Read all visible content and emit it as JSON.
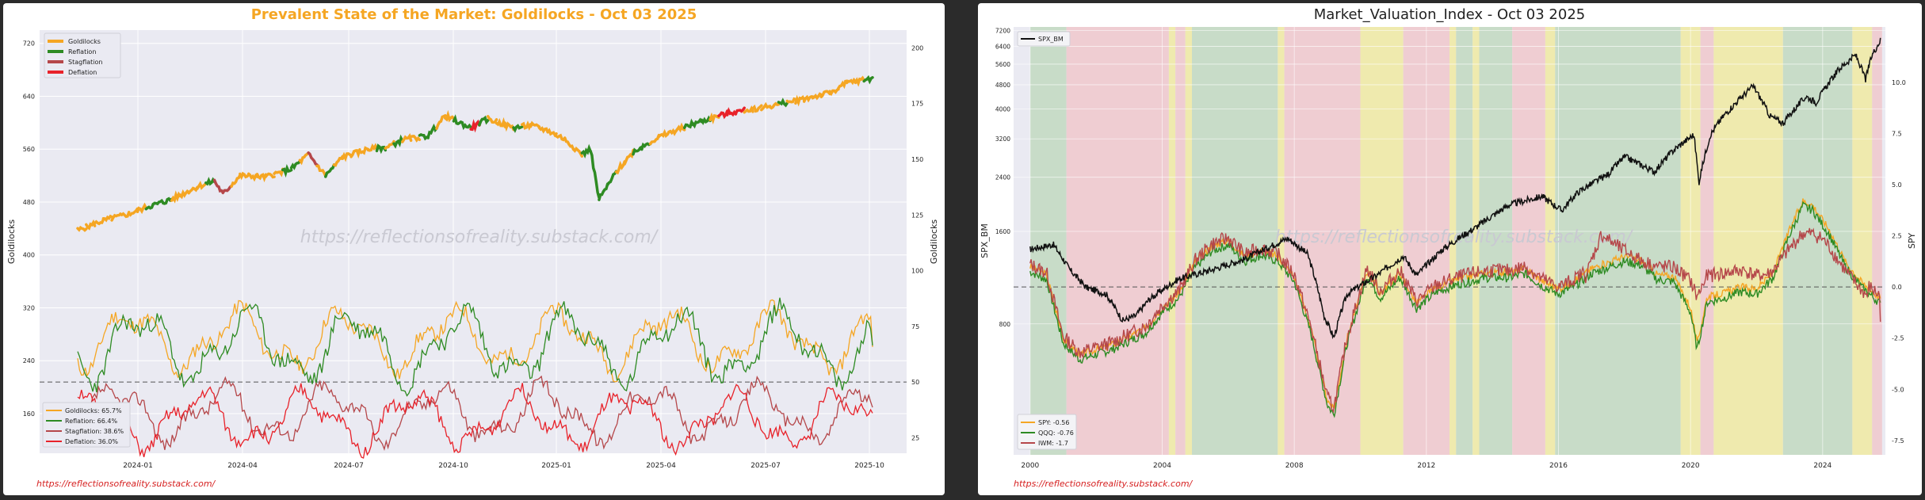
{
  "colors": {
    "goldilocks": "#f5a623",
    "reflation": "#2e8b23",
    "stagflation": "#b5474a",
    "deflation": "#e8222a",
    "spx": "#111111",
    "spy": "#f5a623",
    "qqq": "#2e8b23",
    "iwm": "#b5474a",
    "title_left": "#f5a623",
    "watermark": "#c9c9d2",
    "link": "#d62020",
    "band_green": "#c8dcc8",
    "band_red": "#efcdd2",
    "band_yellow": "#efeaae"
  },
  "source_link": "https://reflectionsofreality.substack.com/",
  "watermark": "https://reflectionsofreality.substack.com/",
  "left": {
    "chart_data": {
      "type": "line",
      "title": "Prevalent State of the Market: Goldilocks - Oct 03 2025",
      "ylabel_left": "Goldilocks",
      "ylabel_right": "Goldilocks",
      "ylim_left": [
        100,
        740
      ],
      "ylim_right": [
        18,
        208
      ],
      "yticks_left": [
        160,
        240,
        320,
        400,
        480,
        560,
        640,
        720
      ],
      "yticks_right": [
        25,
        50,
        75,
        100,
        125,
        150,
        175,
        200
      ],
      "xticks": [
        "2024-01",
        "2024-04",
        "2024-07",
        "2024-10",
        "2025-01",
        "2025-04",
        "2025-07",
        "2025-10"
      ],
      "grid": true,
      "price_legend": [
        "Goldilocks",
        "Reflation",
        "Stagflation",
        "Deflation"
      ],
      "price_legend_position": "top-left",
      "price_states": [
        "G",
        "G",
        "G",
        "G",
        "G",
        "G",
        "G",
        "G",
        "R",
        "R",
        "R",
        "G",
        "G",
        "G",
        "G",
        "R",
        "S",
        "S",
        "G",
        "G",
        "G",
        "G",
        "G",
        "G",
        "R",
        "R",
        "G",
        "S",
        "G",
        "R",
        "G",
        "G",
        "G",
        "G",
        "G",
        "R",
        "G",
        "R",
        "G",
        "G",
        "R",
        "R",
        "G",
        "G",
        "R",
        "R",
        "D",
        "R",
        "G",
        "G",
        "G",
        "R",
        "G",
        "G",
        "G",
        "G",
        "G",
        "G",
        "G",
        "R",
        "R",
        "R",
        "R",
        "G",
        "G",
        "R",
        "R",
        "G",
        "G",
        "G",
        "G",
        "R",
        "R",
        "R",
        "G",
        "D",
        "D",
        "D",
        "G",
        "G",
        "G",
        "G",
        "R",
        "G",
        "G",
        "G",
        "G",
        "G",
        "G",
        "G",
        "G",
        "G",
        "R",
        "R",
        "R"
      ],
      "price_knots": [
        [
          0,
          437
        ],
        [
          3,
          452
        ],
        [
          6,
          462
        ],
        [
          8,
          472
        ],
        [
          11,
          484
        ],
        [
          14,
          503
        ],
        [
          16,
          512
        ],
        [
          17,
          492
        ],
        [
          19,
          520
        ],
        [
          22,
          518
        ],
        [
          25,
          530
        ],
        [
          27,
          552
        ],
        [
          29,
          520
        ],
        [
          31,
          548
        ],
        [
          34,
          560
        ],
        [
          36,
          562
        ],
        [
          38,
          574
        ],
        [
          41,
          580
        ],
        [
          43,
          610
        ],
        [
          46,
          592
        ],
        [
          48,
          606
        ],
        [
          51,
          592
        ],
        [
          53,
          596
        ],
        [
          55,
          588
        ],
        [
          57,
          575
        ],
        [
          59,
          552
        ],
        [
          60,
          560
        ],
        [
          61,
          484
        ],
        [
          63,
          525
        ],
        [
          65,
          556
        ],
        [
          68,
          578
        ],
        [
          72,
          598
        ],
        [
          76,
          614
        ],
        [
          81,
          625
        ],
        [
          85,
          636
        ],
        [
          88,
          645
        ],
        [
          90,
          660
        ],
        [
          93,
          667
        ]
      ],
      "indicator_legend": [
        "Goldilocks: 65.7%",
        "Reflation: 66.4%",
        "Stagflation: 38.6%",
        "Deflation: 36.0%"
      ],
      "indicator_legend_position": "bottom-left",
      "indicator_reference": 50,
      "indicator_series": [
        {
          "name": "Goldilocks",
          "color_key": "goldilocks",
          "last": 65.7,
          "base": 69,
          "amp": 11,
          "seed": 11
        },
        {
          "name": "Reflation",
          "color_key": "reflation",
          "last": 66.4,
          "base": 66,
          "amp": 13,
          "seed": 23
        },
        {
          "name": "Stagflation",
          "color_key": "stagflation",
          "last": 38.6,
          "base": 36,
          "amp": 10,
          "seed": 37
        },
        {
          "name": "Deflation",
          "color_key": "deflation",
          "last": 36.0,
          "base": 33,
          "amp": 10,
          "seed": 51
        }
      ]
    }
  },
  "right": {
    "chart_data": {
      "type": "line",
      "title": "Market_Valuation_Index  - Oct 03 2025",
      "ylabel_left": "SPX_BM",
      "ylabel_right": "SPY",
      "log_scale_left": true,
      "yticks_left": [
        800,
        1600,
        2400,
        3200,
        4000,
        4800,
        5600,
        6400,
        7200
      ],
      "yticks_right": [
        -7.5,
        -5.0,
        -2.5,
        0.0,
        2.5,
        5.0,
        7.5,
        10.0
      ],
      "ylim_right": [
        -8.2,
        12.7
      ],
      "xlim": [
        1999.5,
        2025.9
      ],
      "xticks": [
        2000,
        2004,
        2008,
        2012,
        2016,
        2020,
        2024
      ],
      "grid": true,
      "spx_legend": "SPX_BM",
      "spx_legend_position": "top-left",
      "spx_knots": [
        [
          2000.0,
          1400
        ],
        [
          2000.7,
          1450
        ],
        [
          2001.2,
          1200
        ],
        [
          2001.7,
          1050
        ],
        [
          2002.3,
          1000
        ],
        [
          2002.8,
          820
        ],
        [
          2003.2,
          850
        ],
        [
          2003.6,
          960
        ],
        [
          2004.5,
          1120
        ],
        [
          2005.5,
          1200
        ],
        [
          2006.5,
          1300
        ],
        [
          2007.8,
          1520
        ],
        [
          2008.4,
          1350
        ],
        [
          2008.9,
          850
        ],
        [
          2009.2,
          720
        ],
        [
          2009.6,
          1000
        ],
        [
          2010.5,
          1150
        ],
        [
          2011.3,
          1330
        ],
        [
          2011.7,
          1150
        ],
        [
          2012.5,
          1400
        ],
        [
          2013.5,
          1650
        ],
        [
          2014.5,
          1950
        ],
        [
          2015.5,
          2080
        ],
        [
          2016.1,
          1870
        ],
        [
          2016.6,
          2150
        ],
        [
          2017.5,
          2450
        ],
        [
          2018.0,
          2800
        ],
        [
          2018.9,
          2500
        ],
        [
          2019.5,
          2950
        ],
        [
          2020.1,
          3300
        ],
        [
          2020.25,
          2300
        ],
        [
          2020.6,
          3300
        ],
        [
          2021.0,
          3800
        ],
        [
          2021.9,
          4750
        ],
        [
          2022.4,
          3800
        ],
        [
          2022.8,
          3600
        ],
        [
          2023.5,
          4400
        ],
        [
          2023.8,
          4200
        ],
        [
          2024.5,
          5400
        ],
        [
          2025.0,
          6000
        ],
        [
          2025.3,
          5000
        ],
        [
          2025.5,
          6000
        ],
        [
          2025.75,
          6700
        ]
      ],
      "valuation_legend": [
        "SPY: -0.56",
        "QQQ: -0.76",
        "IWM: -1.7"
      ],
      "valuation_legend_position": "bottom-left",
      "valuation_reference": 0.0,
      "valuation_knots": [
        [
          2000.0,
          1.0
        ],
        [
          2000.5,
          0.6
        ],
        [
          2001.0,
          -2.5
        ],
        [
          2001.5,
          -3.3
        ],
        [
          2002.5,
          -2.8
        ],
        [
          2003.0,
          -2.4
        ],
        [
          2003.5,
          -2.0
        ],
        [
          2004.0,
          -1.0
        ],
        [
          2004.5,
          -0.3
        ],
        [
          2005.0,
          1.2
        ],
        [
          2005.5,
          2.0
        ],
        [
          2006.0,
          2.3
        ],
        [
          2006.5,
          1.5
        ],
        [
          2007.0,
          1.8
        ],
        [
          2007.5,
          1.5
        ],
        [
          2008.0,
          0.5
        ],
        [
          2008.5,
          -2.0
        ],
        [
          2009.0,
          -5.5
        ],
        [
          2009.2,
          -6.0
        ],
        [
          2009.6,
          -2.5
        ],
        [
          2010.2,
          0.8
        ],
        [
          2010.6,
          -0.3
        ],
        [
          2011.2,
          0.7
        ],
        [
          2011.7,
          -0.8
        ],
        [
          2012.3,
          0.0
        ],
        [
          2013.0,
          0.4
        ],
        [
          2013.8,
          0.7
        ],
        [
          2014.5,
          0.7
        ],
        [
          2015.0,
          0.9
        ],
        [
          2015.5,
          0.3
        ],
        [
          2016.0,
          -0.1
        ],
        [
          2016.5,
          0.3
        ],
        [
          2017.0,
          0.9
        ],
        [
          2017.5,
          1.2
        ],
        [
          2018.0,
          1.5
        ],
        [
          2018.5,
          1.3
        ],
        [
          2019.0,
          0.6
        ],
        [
          2019.5,
          0.5
        ],
        [
          2020.0,
          -1.0
        ],
        [
          2020.2,
          -2.8
        ],
        [
          2020.5,
          -0.5
        ],
        [
          2021.0,
          -0.3
        ],
        [
          2021.5,
          0.0
        ],
        [
          2022.0,
          -0.1
        ],
        [
          2022.5,
          0.7
        ],
        [
          2023.0,
          2.8
        ],
        [
          2023.4,
          4.2
        ],
        [
          2023.7,
          4.0
        ],
        [
          2024.2,
          2.8
        ],
        [
          2024.7,
          1.2
        ],
        [
          2025.2,
          0.2
        ],
        [
          2025.75,
          -0.56
        ]
      ],
      "valuation_series": [
        {
          "name": "SPY",
          "color_key": "spy",
          "last": -0.56,
          "offset": 0.0,
          "noise": 0.18,
          "seed": 3
        },
        {
          "name": "QQQ",
          "color_key": "qqq",
          "last": -0.76,
          "offset": -0.25,
          "noise": 0.22,
          "seed": 7
        },
        {
          "name": "IWM",
          "color_key": "iwm",
          "last": -1.7,
          "offset": 0.1,
          "noise": 0.35,
          "seed": 13
        }
      ],
      "iwm_extra": [
        [
          2016.8,
          0.0
        ],
        [
          2017.3,
          3.6
        ],
        [
          2017.9,
          2.0
        ],
        [
          2018.5,
          1.1
        ],
        [
          2021.6,
          1.3
        ],
        [
          2022.3,
          0.6
        ],
        [
          2024.0,
          1.4
        ],
        [
          2024.6,
          0.4
        ],
        [
          2025.3,
          -0.9
        ]
      ],
      "regime_bands": [
        {
          "start": 2000.0,
          "end": 2001.1,
          "state": "green"
        },
        {
          "start": 2001.1,
          "end": 2004.2,
          "state": "red"
        },
        {
          "start": 2004.2,
          "end": 2004.4,
          "state": "yellow"
        },
        {
          "start": 2004.4,
          "end": 2004.7,
          "state": "red"
        },
        {
          "start": 2004.7,
          "end": 2004.9,
          "state": "yellow"
        },
        {
          "start": 2004.9,
          "end": 2007.5,
          "state": "green"
        },
        {
          "start": 2007.5,
          "end": 2007.7,
          "state": "yellow"
        },
        {
          "start": 2007.7,
          "end": 2010.0,
          "state": "red"
        },
        {
          "start": 2010.0,
          "end": 2011.3,
          "state": "yellow"
        },
        {
          "start": 2011.3,
          "end": 2012.7,
          "state": "red"
        },
        {
          "start": 2012.7,
          "end": 2012.9,
          "state": "yellow"
        },
        {
          "start": 2012.9,
          "end": 2013.4,
          "state": "green"
        },
        {
          "start": 2013.4,
          "end": 2013.6,
          "state": "yellow"
        },
        {
          "start": 2013.6,
          "end": 2014.6,
          "state": "green"
        },
        {
          "start": 2014.6,
          "end": 2015.6,
          "state": "red"
        },
        {
          "start": 2015.6,
          "end": 2015.9,
          "state": "yellow"
        },
        {
          "start": 2015.9,
          "end": 2019.7,
          "state": "green"
        },
        {
          "start": 2019.7,
          "end": 2020.3,
          "state": "yellow"
        },
        {
          "start": 2020.3,
          "end": 2020.7,
          "state": "red"
        },
        {
          "start": 2020.7,
          "end": 2022.8,
          "state": "yellow"
        },
        {
          "start": 2022.8,
          "end": 2024.9,
          "state": "green"
        },
        {
          "start": 2024.9,
          "end": 2025.5,
          "state": "yellow"
        },
        {
          "start": 2025.5,
          "end": 2025.8,
          "state": "red"
        }
      ]
    }
  }
}
